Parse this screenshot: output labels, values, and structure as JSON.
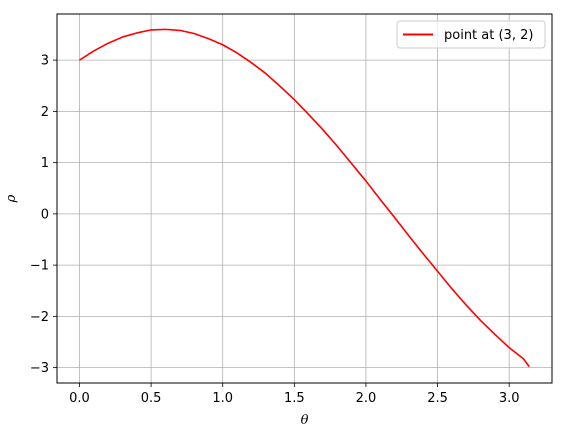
{
  "chart_data": {
    "type": "line",
    "title": "",
    "xlabel": "θ",
    "ylabel": "ρ",
    "xlim": [
      -0.157,
      3.299
    ],
    "ylim": [
      -3.3,
      3.9
    ],
    "xticks": [
      0.0,
      0.5,
      1.0,
      1.5,
      2.0,
      2.5,
      3.0
    ],
    "xtick_labels": [
      "0.0",
      "0.5",
      "1.0",
      "1.5",
      "2.0",
      "2.5",
      "3.0"
    ],
    "yticks": [
      -3,
      -2,
      -1,
      0,
      1,
      2,
      3
    ],
    "ytick_labels": [
      "−3",
      "−2",
      "−1",
      "0",
      "1",
      "2",
      "3"
    ],
    "grid": true,
    "legend_position": "top-right",
    "series": [
      {
        "name": "point at (3, 2)",
        "color": "#ff0000",
        "x": [
          0.0,
          0.1,
          0.2,
          0.3,
          0.4,
          0.5,
          0.6,
          0.7,
          0.8,
          0.9,
          1.0,
          1.1,
          1.2,
          1.3,
          1.4,
          1.5,
          1.6,
          1.7,
          1.8,
          1.9,
          2.0,
          2.1,
          2.2,
          2.3,
          2.4,
          2.5,
          2.6,
          2.7,
          2.8,
          2.9,
          3.0,
          3.1,
          3.14
        ],
        "y": [
          3.0,
          3.18,
          3.33,
          3.45,
          3.53,
          3.59,
          3.6,
          3.58,
          3.52,
          3.42,
          3.3,
          3.14,
          2.95,
          2.74,
          2.49,
          2.23,
          1.94,
          1.64,
          1.32,
          0.98,
          0.64,
          0.28,
          -0.07,
          -0.43,
          -0.78,
          -1.12,
          -1.46,
          -1.78,
          -2.08,
          -2.35,
          -2.61,
          -2.83,
          -2.98
        ]
      }
    ]
  }
}
